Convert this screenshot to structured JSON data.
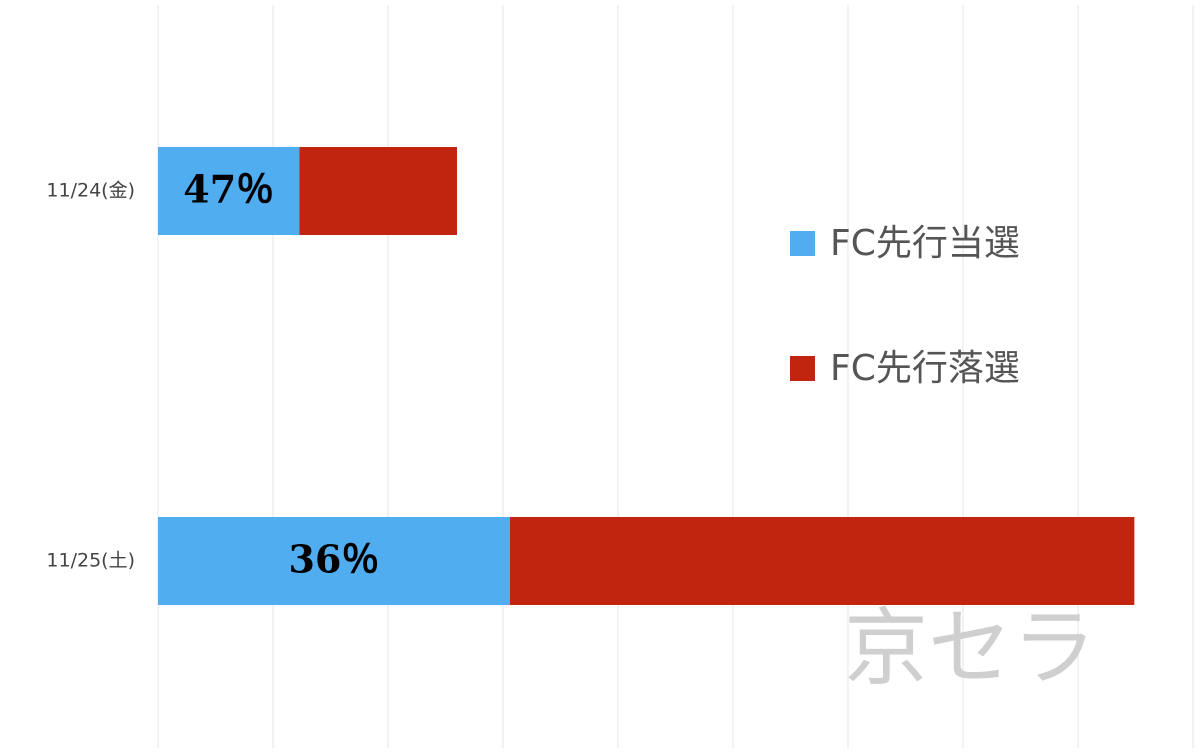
{
  "chart_data": {
    "type": "stacked-barh",
    "categories": [
      "11/24(金)",
      "11/25(土)"
    ],
    "series": [
      {
        "name": "FC先行当選",
        "color": "#4fadf0",
        "values": [
          1.23,
          3.06
        ],
        "data_labels": [
          "47％",
          "36％"
        ]
      },
      {
        "name": "FC先行落選",
        "color": "#c1250f",
        "values": [
          1.37,
          5.43
        ]
      }
    ],
    "xlim": [
      0,
      9.3
    ],
    "xticks": [
      0,
      1,
      2,
      3,
      4,
      5,
      6,
      7,
      8,
      9
    ],
    "tick_labels": false,
    "grid": true,
    "legend": "right",
    "watermark": "京セラ"
  }
}
